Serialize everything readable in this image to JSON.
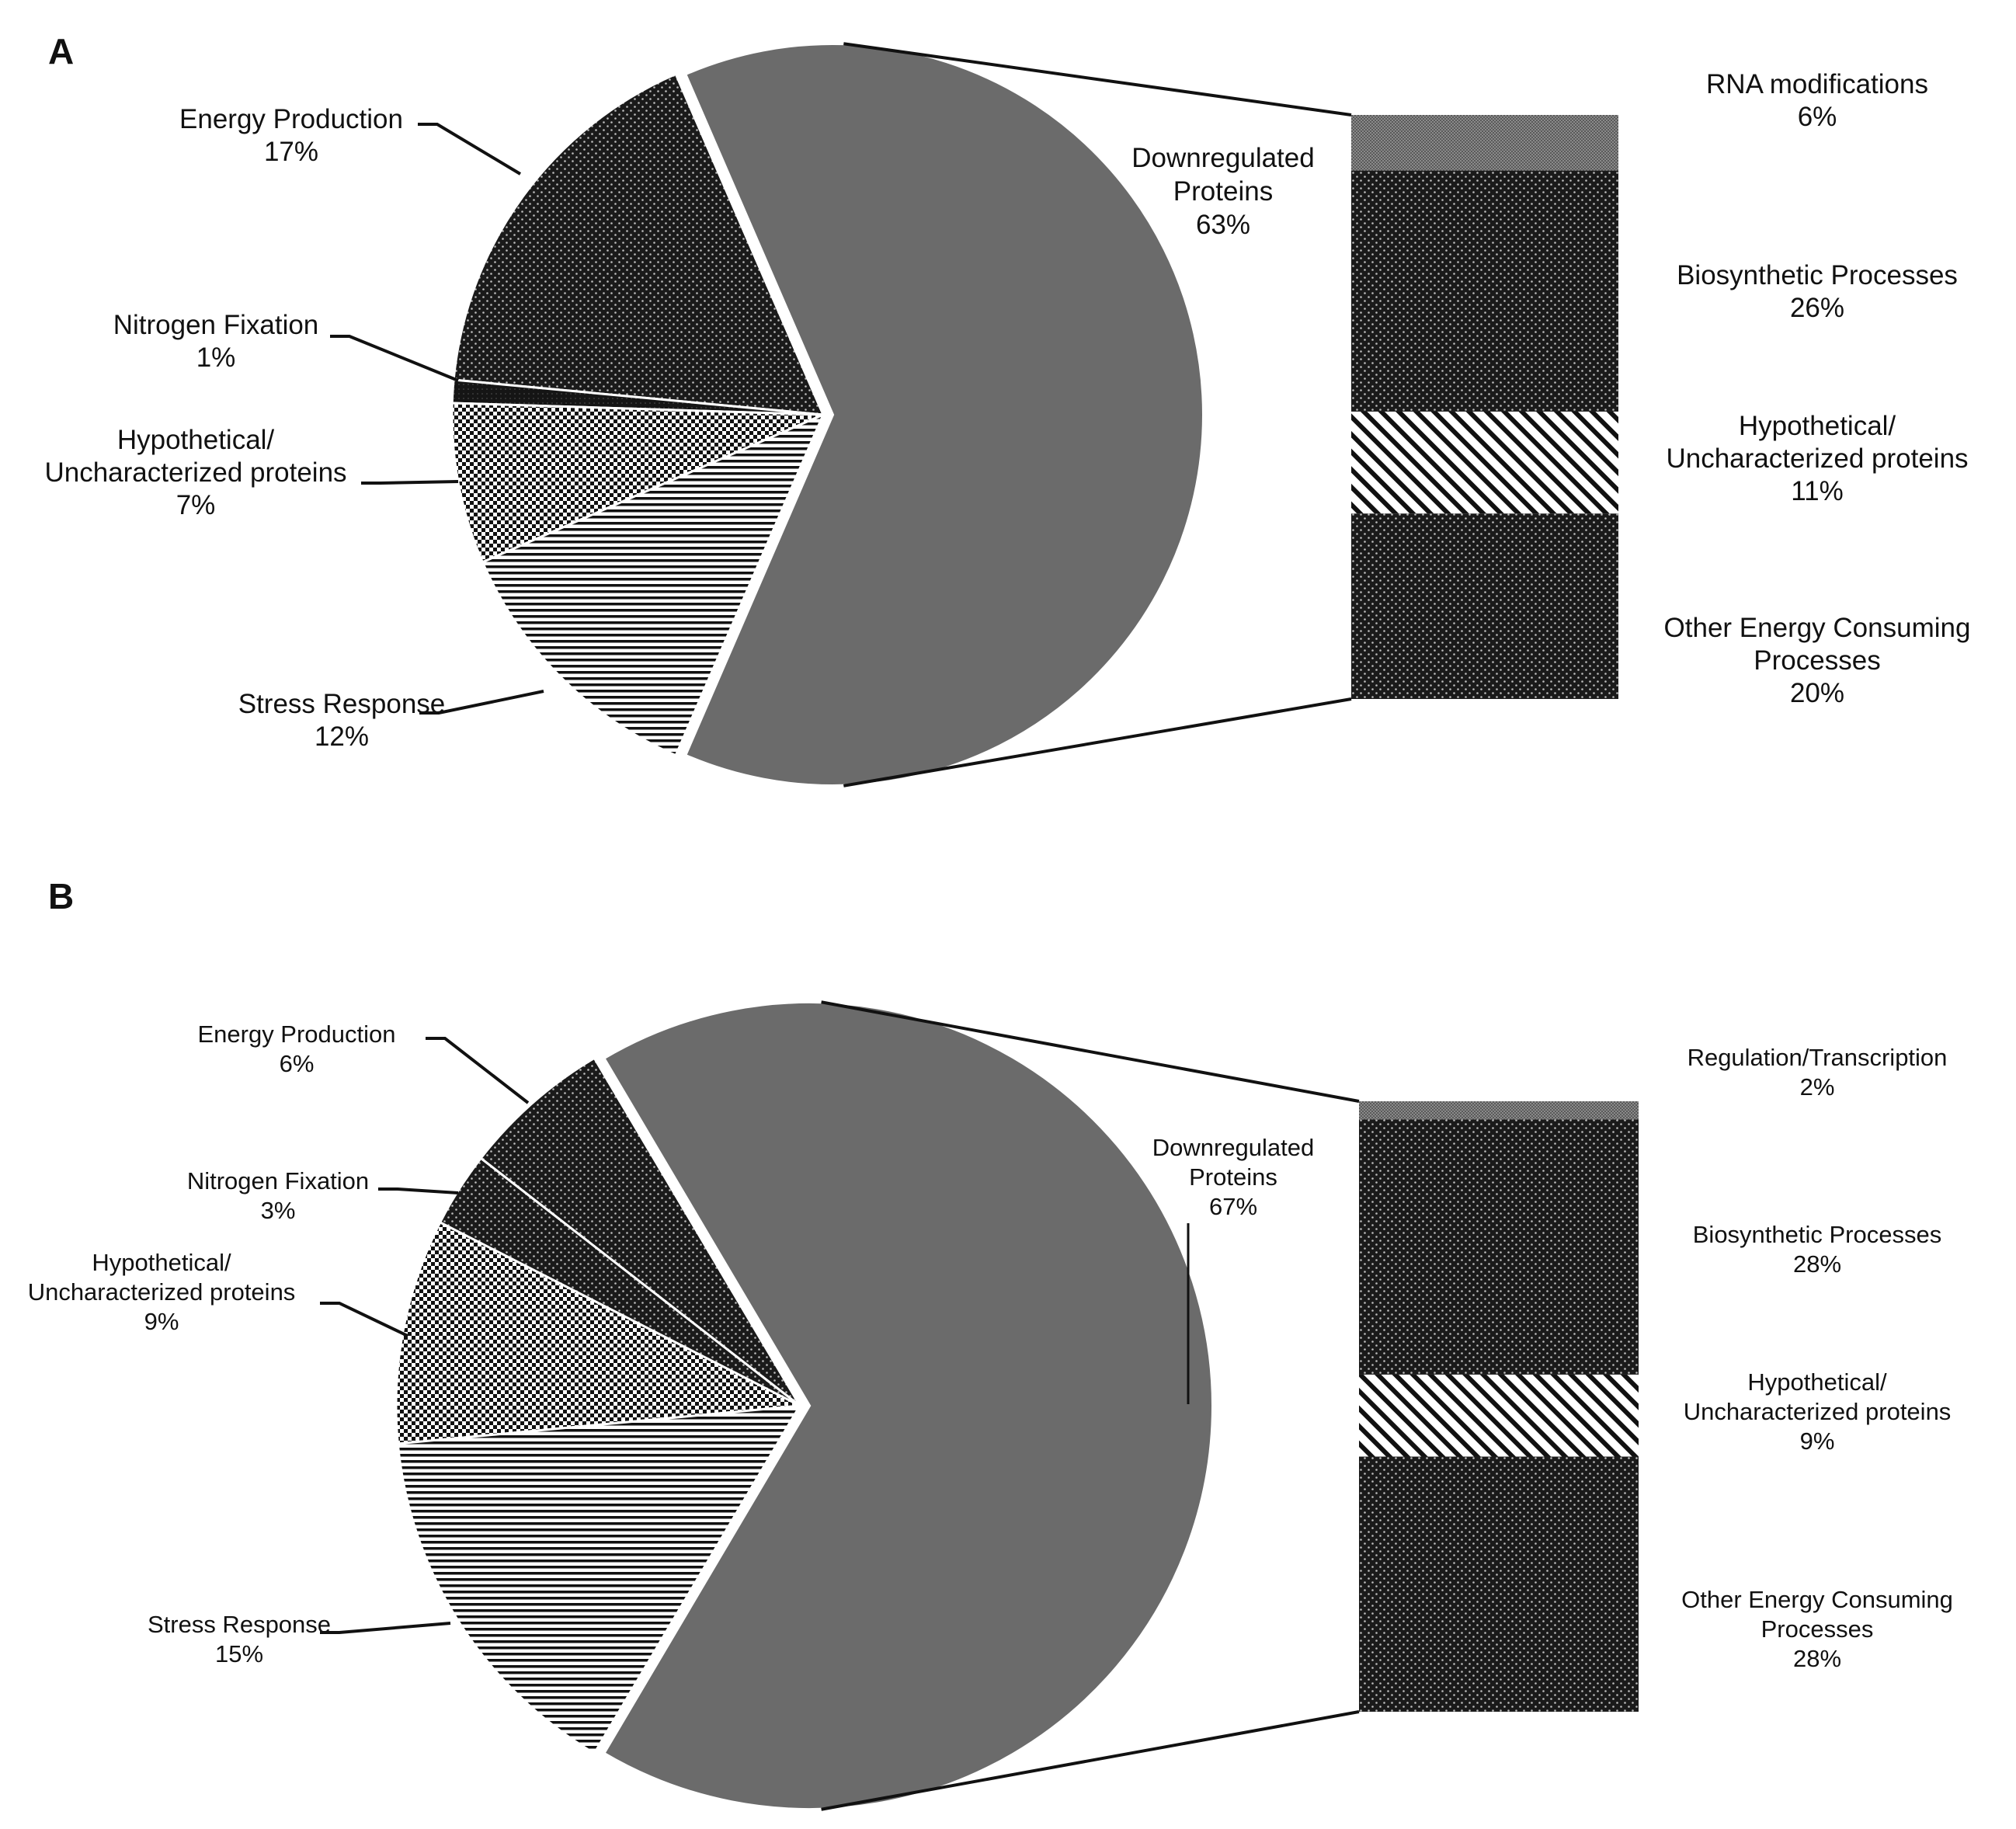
{
  "chart_data": [
    {
      "panel": "A",
      "type": "pie",
      "slices": [
        {
          "label": "Downregulated Proteins",
          "value": 63,
          "value_label": "63%",
          "color": "#6b6b6b",
          "pattern": "solid",
          "exploded": true
        },
        {
          "label": "Energy Production",
          "value": 17,
          "value_label": "17%",
          "color": "#1a1a1a",
          "pattern": "dots"
        },
        {
          "label": "Nitrogen Fixation",
          "value": 1,
          "value_label": "1%",
          "color": "#1a1a1a",
          "pattern": "dark"
        },
        {
          "label": "Hypothetical/ Uncharacterized proteins",
          "value": 7,
          "value_label": "7%",
          "color": "#ffffff",
          "pattern": "checker"
        },
        {
          "label": "Stress Response",
          "value": 12,
          "value_label": "12%",
          "color": "#ffffff",
          "pattern": "hstripes"
        }
      ],
      "breakdown": {
        "of": "Downregulated Proteins",
        "type": "stacked-bar",
        "segments": [
          {
            "label": "RNA modifications",
            "value": 6,
            "value_label": "6%",
            "color": "#7a7a7a",
            "pattern": "fine-gray"
          },
          {
            "label": "Biosynthetic Processes",
            "value": 26,
            "value_label": "26%",
            "color": "#1a1a1a",
            "pattern": "dots"
          },
          {
            "label": "Hypothetical/ Uncharacterized proteins",
            "value": 11,
            "value_label": "11%",
            "color": "#ffffff",
            "pattern": "diagonal"
          },
          {
            "label": "Other Energy Consuming Processes",
            "value": 20,
            "value_label": "20%",
            "color": "#1a1a1a",
            "pattern": "dots"
          }
        ]
      }
    },
    {
      "panel": "B",
      "type": "pie",
      "slices": [
        {
          "label": "Downregulated Proteins",
          "value": 67,
          "value_label": "67%",
          "color": "#6b6b6b",
          "pattern": "solid",
          "exploded": true
        },
        {
          "label": "Energy Production",
          "value": 6,
          "value_label": "6%",
          "color": "#1a1a1a",
          "pattern": "dots"
        },
        {
          "label": "Nitrogen Fixation",
          "value": 3,
          "value_label": "3%",
          "color": "#1a1a1a",
          "pattern": "dots"
        },
        {
          "label": "Hypothetical/ Uncharacterized proteins",
          "value": 9,
          "value_label": "9%",
          "color": "#ffffff",
          "pattern": "checker"
        },
        {
          "label": "Stress Response",
          "value": 15,
          "value_label": "15%",
          "color": "#ffffff",
          "pattern": "hstripes"
        }
      ],
      "breakdown": {
        "of": "Downregulated Proteins",
        "type": "stacked-bar",
        "segments": [
          {
            "label": "Regulation/Transcription",
            "value": 2,
            "value_label": "2%",
            "color": "#7a7a7a",
            "pattern": "fine-gray"
          },
          {
            "label": "Biosynthetic Processes",
            "value": 28,
            "value_label": "28%",
            "color": "#1a1a1a",
            "pattern": "dots"
          },
          {
            "label": "Hypothetical/ Uncharacterized proteins",
            "value": 9,
            "value_label": "9%",
            "color": "#ffffff",
            "pattern": "diagonal"
          },
          {
            "label": "Other Energy Consuming Processes",
            "value": 28,
            "value_label": "28%",
            "color": "#1a1a1a",
            "pattern": "dots"
          }
        ]
      }
    }
  ]
}
